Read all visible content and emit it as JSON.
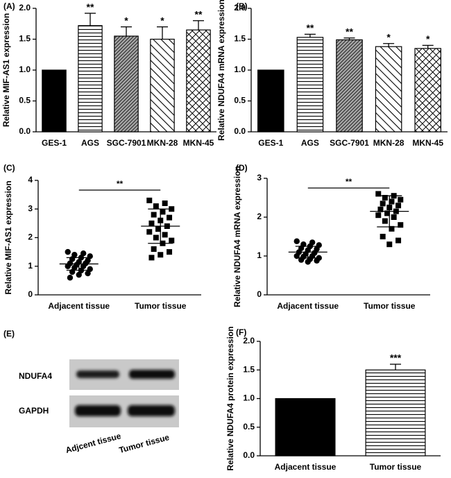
{
  "chart_data": [
    {
      "type": "bar",
      "panel": "(A)",
      "ylabel": "Relative MIF-AS1 expression",
      "categories": [
        "GES-1",
        "AGS",
        "SGC-7901",
        "MKN-28",
        "MKN-45"
      ],
      "values": [
        1.0,
        1.72,
        1.55,
        1.5,
        1.65
      ],
      "errors": [
        null,
        0.2,
        0.15,
        0.2,
        0.15
      ],
      "annotations": [
        null,
        "**",
        "*",
        "*",
        "**"
      ],
      "color": "#000000",
      "patterns": [
        "solid",
        "horizontal",
        "dense-diagonal",
        "diagonal",
        "crosshatch"
      ],
      "ylim": [
        0,
        2
      ],
      "yticks": [
        {
          "value": 0,
          "label": "0.0"
        },
        0.5,
        {
          "value": 1,
          "label": "1.0"
        },
        1.5,
        {
          "value": 2,
          "label": "2.0"
        }
      ]
    },
    {
      "type": "bar",
      "panel": "(B)",
      "ylabel": "Relative NDUFA4 mRNA expression",
      "categories": [
        "GES-1",
        "AGS",
        "SGC-7901",
        "MKN-28",
        "MKN-45"
      ],
      "values": [
        1.0,
        1.53,
        1.49,
        1.38,
        1.35
      ],
      "errors": [
        null,
        0.05,
        0.03,
        0.05,
        0.05
      ],
      "annotations": [
        null,
        "**",
        "**",
        "*",
        "*"
      ],
      "color": "#000000",
      "patterns": [
        "solid",
        "horizontal",
        "dense-diagonal",
        "diagonal",
        "crosshatch"
      ],
      "ylim": [
        0,
        2
      ],
      "yticks": [
        {
          "value": 0,
          "label": "0.0"
        },
        0.5,
        {
          "value": 1,
          "label": "1.0"
        },
        1.5,
        {
          "value": 2,
          "label": "2.0"
        }
      ]
    },
    {
      "type": "scatter",
      "panel": "(C)",
      "ylabel": "Relative MIF-AS1 expression",
      "categories": [
        "Adjacent tissue",
        "Tumor tissue"
      ],
      "significance": "**",
      "series": [
        {
          "marker": "circle",
          "color": "#000000",
          "values": [
            1.5,
            1.45,
            1.4,
            1.35,
            1.3,
            1.25,
            1.2,
            1.15,
            1.1,
            1.1,
            1.05,
            1.0,
            1.0,
            0.95,
            0.9,
            0.85,
            0.8,
            0.75,
            0.7,
            0.6
          ]
        },
        {
          "marker": "square",
          "color": "#000000",
          "values": [
            3.3,
            3.2,
            3.1,
            3.0,
            2.9,
            2.8,
            2.7,
            2.6,
            2.5,
            2.4,
            2.3,
            2.2,
            2.1,
            2.0,
            1.9,
            1.8,
            1.6,
            1.5,
            1.4,
            1.3
          ]
        }
      ],
      "mean": [
        1.08,
        2.4
      ],
      "sd": [
        0.22,
        0.6
      ],
      "ylim": [
        0,
        4
      ],
      "yticks": [
        0,
        1,
        2,
        3,
        4
      ]
    },
    {
      "type": "scatter",
      "panel": "(D)",
      "ylabel": "Relative NDUFA4 mRNA expression",
      "categories": [
        "Adjacent tissue",
        "Tumor tissue"
      ],
      "significance": "**",
      "series": [
        {
          "marker": "circle",
          "color": "#000000",
          "values": [
            1.38,
            1.35,
            1.3,
            1.28,
            1.25,
            1.2,
            1.18,
            1.15,
            1.1,
            1.08,
            1.05,
            1.0,
            1.0,
            0.98,
            0.95,
            0.92,
            0.9,
            0.88,
            0.85
          ]
        },
        {
          "marker": "square",
          "color": "#000000",
          "values": [
            2.6,
            2.55,
            2.5,
            2.45,
            2.4,
            2.35,
            2.3,
            2.25,
            2.2,
            2.15,
            2.1,
            2.05,
            2.0,
            1.9,
            1.8,
            1.7,
            1.5,
            1.4,
            1.3
          ]
        }
      ],
      "mean": [
        1.1,
        2.15
      ],
      "sd": [
        0.15,
        0.4
      ],
      "ylim": [
        0,
        3
      ],
      "yticks": [
        0,
        1,
        2,
        3
      ]
    },
    {
      "type": "bar",
      "panel": "(F)",
      "ylabel": "Relative NDUFA4 protein expression",
      "categories": [
        "Adjacent tissue",
        "Tumor tissue"
      ],
      "values": [
        1.0,
        1.5
      ],
      "errors": [
        null,
        0.1
      ],
      "annotations": [
        null,
        "***"
      ],
      "color": "#000000",
      "patterns": [
        "solid",
        "horizontal"
      ],
      "ylim": [
        0,
        2
      ],
      "yticks": [
        {
          "value": 0,
          "label": "0.0"
        },
        0.5,
        {
          "value": 1,
          "label": "1.0"
        },
        1.5,
        {
          "value": 2,
          "label": "2.0"
        }
      ]
    }
  ],
  "blot": {
    "label": "(E)",
    "rows": [
      "NDUFA4",
      "GAPDH"
    ],
    "lanes": [
      "Adjcent tissue",
      "Tumor tissue"
    ]
  }
}
